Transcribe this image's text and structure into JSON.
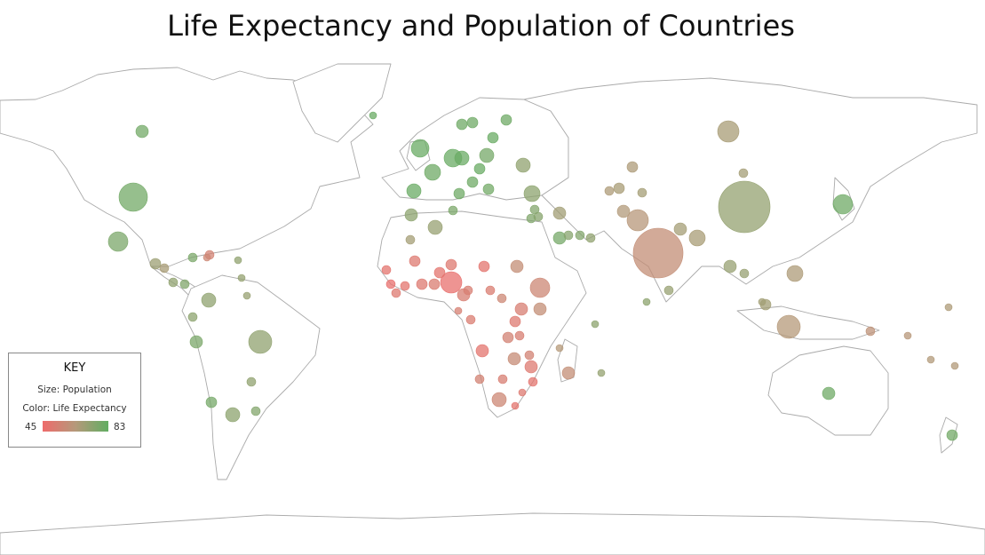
{
  "title": "Life Expectancy and Population of Countries",
  "legend": {
    "heading": "KEY",
    "size_label": "Size: Population",
    "color_label": "Color: Life Expectancy",
    "min_label": "45",
    "max_label": "83",
    "color_low": "#ee6b6b",
    "color_mid": "#b5997a",
    "color_high": "#62ad62"
  },
  "map_style": {
    "land_fill": "#ffffff",
    "border_color": "#aaaaaa",
    "bubble_opacity": 0.75
  },
  "chart_data": {
    "type": "bubble-map",
    "size_encodes": "population",
    "color_encodes": "life expectancy",
    "color_range": [
      45,
      83
    ]
  }
}
